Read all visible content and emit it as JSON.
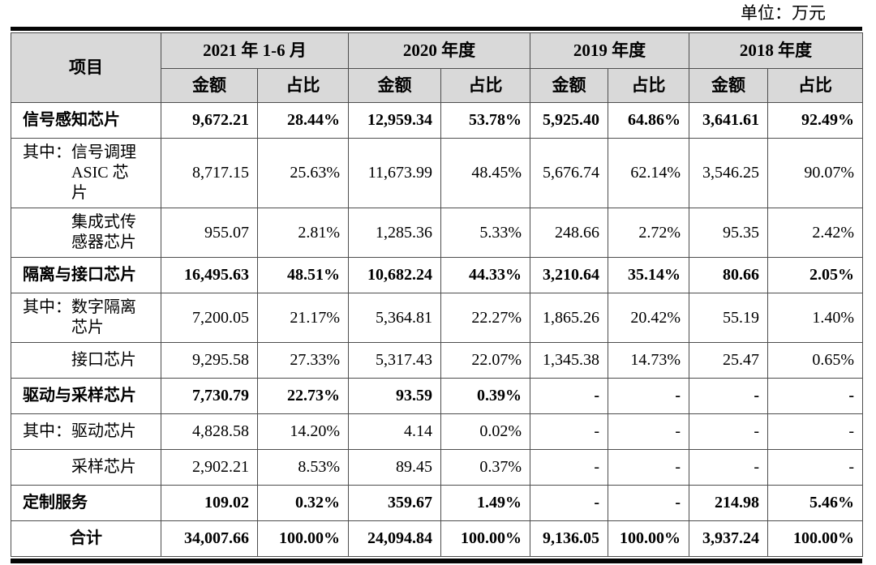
{
  "meta": {
    "unit_label": "单位：万元"
  },
  "table": {
    "item_header": "项目",
    "col_groups": [
      {
        "label": "2021 年 1-6 月"
      },
      {
        "label": "2020 年度"
      },
      {
        "label": "2019 年度"
      },
      {
        "label": "2018 年度"
      }
    ],
    "sub_headers": {
      "amount": "金额",
      "ratio": "占比"
    },
    "header_bg_color": "#d9d9d9",
    "rows": [
      {
        "label": "信号感知芯片",
        "style": "category",
        "values": [
          "9,672.21",
          "28.44%",
          "12,959.34",
          "53.78%",
          "5,925.40",
          "64.86%",
          "3,641.61",
          "92.49%"
        ]
      },
      {
        "label": "其中：信号调理\nASIC 芯\n片",
        "style": "qizhong",
        "values": [
          "8,717.15",
          "25.63%",
          "11,673.99",
          "48.45%",
          "5,676.74",
          "62.14%",
          "3,546.25",
          "90.07%"
        ]
      },
      {
        "label": "集成式传\n感器芯片",
        "style": "sub",
        "values": [
          "955.07",
          "2.81%",
          "1,285.36",
          "5.33%",
          "248.66",
          "2.72%",
          "95.35",
          "2.42%"
        ]
      },
      {
        "label": "隔离与接口芯片",
        "style": "category",
        "values": [
          "16,495.63",
          "48.51%",
          "10,682.24",
          "44.33%",
          "3,210.64",
          "35.14%",
          "80.66",
          "2.05%"
        ]
      },
      {
        "label": "其中：数字隔离\n芯片",
        "style": "qizhong",
        "values": [
          "7,200.05",
          "21.17%",
          "5,364.81",
          "22.27%",
          "1,865.26",
          "20.42%",
          "55.19",
          "1.40%"
        ]
      },
      {
        "label": "接口芯片",
        "style": "sub",
        "values": [
          "9,295.58",
          "27.33%",
          "5,317.43",
          "22.07%",
          "1,345.38",
          "14.73%",
          "25.47",
          "0.65%"
        ]
      },
      {
        "label": "驱动与采样芯片",
        "style": "category",
        "values": [
          "7,730.79",
          "22.73%",
          "93.59",
          "0.39%",
          "-",
          "-",
          "-",
          "-"
        ]
      },
      {
        "label": "其中：驱动芯片",
        "style": "qizhong",
        "values": [
          "4,828.58",
          "14.20%",
          "4.14",
          "0.02%",
          "-",
          "-",
          "-",
          "-"
        ]
      },
      {
        "label": "采样芯片",
        "style": "sub",
        "values": [
          "2,902.21",
          "8.53%",
          "89.45",
          "0.37%",
          "-",
          "-",
          "-",
          "-"
        ]
      },
      {
        "label": "定制服务",
        "style": "category",
        "values": [
          "109.02",
          "0.32%",
          "359.67",
          "1.49%",
          "-",
          "-",
          "214.98",
          "5.46%"
        ]
      },
      {
        "label": "合计",
        "style": "total",
        "values": [
          "34,007.66",
          "100.00%",
          "24,094.84",
          "100.00%",
          "9,136.05",
          "100.00%",
          "3,937.24",
          "100.00%"
        ]
      }
    ]
  }
}
